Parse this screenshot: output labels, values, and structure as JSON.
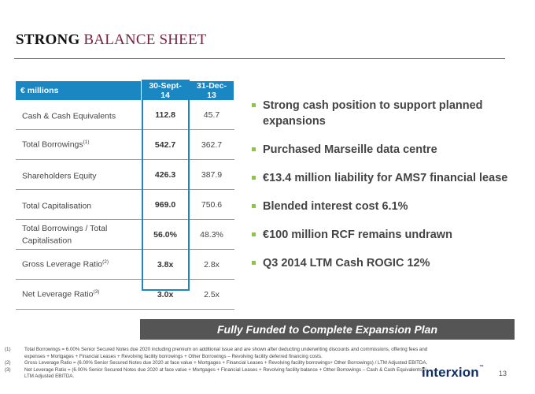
{
  "header": {
    "title_bold": "STRONG",
    "title_rest": "BALANCE SHEET"
  },
  "table": {
    "columns": [
      "€ millions",
      "30-Sept-14",
      "31-Dec-13"
    ],
    "rows": [
      {
        "label": "Cash & Cash Equivalents",
        "sup": "",
        "sep14": "112.8",
        "dec13": "45.7"
      },
      {
        "label": "Total Borrowings",
        "sup": "(1)",
        "sep14": "542.7",
        "dec13": "362.7"
      },
      {
        "label": "Shareholders Equity",
        "sup": "",
        "sep14": "426.3",
        "dec13": "387.9"
      },
      {
        "label": "Total Capitalisation",
        "sup": "",
        "sep14": "969.0",
        "dec13": "750.6"
      },
      {
        "label": "Total Borrowings / Total Capitalisation",
        "sup": "",
        "sep14": "56.0%",
        "dec13": "48.3%"
      },
      {
        "label": "Gross Leverage Ratio",
        "sup": "(2)",
        "sep14": "3.8x",
        "dec13": "2.8x"
      },
      {
        "label": "Net Leverage Ratio",
        "sup": "(3)",
        "sep14": "3.0x",
        "dec13": "2.5x"
      }
    ]
  },
  "bullets": [
    "Strong cash position to support planned expansions",
    "Purchased Marseille data centre",
    "€13.4 million liability for AMS7 financial lease",
    "Blended interest cost 6.1%",
    "€100 million RCF remains undrawn",
    "Q3 2014 LTM Cash ROGIC 12%"
  ],
  "banner": "Fully Funded to Complete Expansion Plan",
  "footnotes": [
    {
      "num": "(1)",
      "text": "Total Borrowings = 6.00% Senior Secured  Notes due 2020 including premium on additional issue and are shown after deducting underwriting discounts and commissions, offering fees and expenses + Mortgages + Financial Leases + Revolving facility borrowings + Other Borrowings – Revolving facility deferred financing costs."
    },
    {
      "num": "(2)",
      "text": "Gross Leverage Ratio =  (6.00% Senior Secured Notes due 2020 at face value + Mortgages + Financial Leases + Revolving facility borrowings+ Other Borrowings)  /  LTM Adjusted EBITDA."
    },
    {
      "num": "(3)",
      "text": "Net Leverage Ratio = (6.00% Senior Secured Notes due 2020 at face value + Mortgages + Financial Leases + Revolving facility balance + Other Borrowings – Cash & Cash Equivalents)  /  LTM Adjusted EBITDA."
    }
  ],
  "logo": {
    "text": "interxion",
    "tm": "™"
  },
  "page_number": "13",
  "colors": {
    "header_blue": "#1a86c2",
    "bullet_green": "#8dc63f",
    "title_maroon": "#7a1f3c",
    "banner_gray": "#555555"
  }
}
